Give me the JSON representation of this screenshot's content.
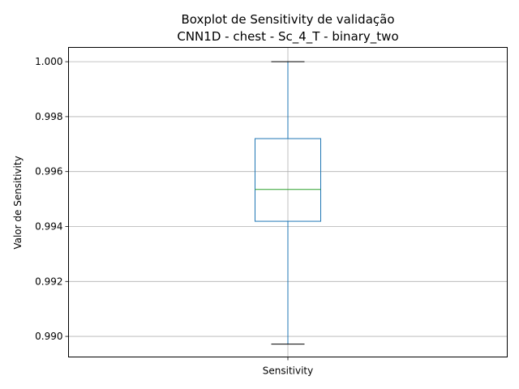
{
  "chart_data": {
    "type": "box",
    "title_line1": "Boxplot de Sensitivity de validação",
    "title_line2": "CNN1D - chest - Sc_4_T - binary_two",
    "xlabel": "",
    "ylabel": "Valor de Sensitivity",
    "categories": [
      "Sensitivity"
    ],
    "ylim": [
      0.98925,
      1.00052
    ],
    "yticks": [
      {
        "value": 0.99,
        "label": "0.990"
      },
      {
        "value": 0.992,
        "label": "0.992"
      },
      {
        "value": 0.994,
        "label": "0.994"
      },
      {
        "value": 0.996,
        "label": "0.996"
      },
      {
        "value": 0.998,
        "label": "0.998"
      },
      {
        "value": 1.0,
        "label": "1.000"
      }
    ],
    "boxes": [
      {
        "category": "Sensitivity",
        "whisker_low": 0.98972,
        "q1": 0.99419,
        "median": 0.99535,
        "q3": 0.9972,
        "whisker_high": 1.0
      }
    ],
    "grid": true,
    "colors": {
      "box": "#1f77b4",
      "median": "#2ca02c",
      "whisker": "#1f77b4",
      "cap": "#000000",
      "grid": "#b0b0b0"
    }
  }
}
